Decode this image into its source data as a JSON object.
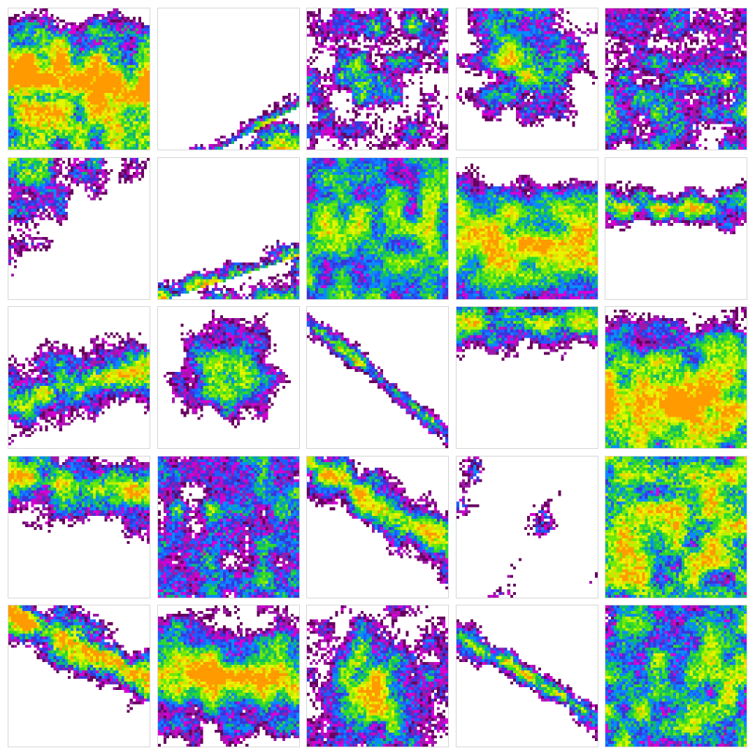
{
  "palette": {
    "empty": "#ffffff",
    "levels": [
      "#66005e",
      "#9c1aa8",
      "#d400d4",
      "#3b34d8",
      "#1f5cff",
      "#0a8aff",
      "#11b86e",
      "#2ed82e",
      "#6fe80a",
      "#b8f000",
      "#e6f500",
      "#f2d000",
      "#ff9a00"
    ]
  },
  "tiles": [
    {
      "id": "r1c1",
      "pattern": "band",
      "angle": 8,
      "offset": 0.05,
      "width": 1.2,
      "coverage": 0.95,
      "hot": 0.75,
      "topFade": 0.18
    },
    {
      "id": "r1c2",
      "pattern": "wedge",
      "angle": -28,
      "offset": 0.42,
      "width": 0.6,
      "coverage": 0.55,
      "hot": 0.55,
      "topFade": 0.0
    },
    {
      "id": "r1c3",
      "pattern": "patchy",
      "angle": 0,
      "offset": -0.1,
      "width": 0.7,
      "coverage": 0.6,
      "hot": 0.45,
      "topFade": 0.0
    },
    {
      "id": "r1c4",
      "pattern": "blob",
      "angle": 0,
      "offset": -0.15,
      "width": 0.9,
      "coverage": 0.8,
      "hot": 0.6,
      "topFade": 0.0
    },
    {
      "id": "r1c5",
      "pattern": "patchy",
      "angle": 5,
      "offset": -0.05,
      "width": 0.8,
      "coverage": 0.7,
      "hot": 0.5,
      "topFade": 0.0
    },
    {
      "id": "r2c1",
      "pattern": "corner",
      "angle": -35,
      "offset": -0.25,
      "width": 0.5,
      "coverage": 0.45,
      "hot": 0.35,
      "topFade": 0.0
    },
    {
      "id": "r2c2",
      "pattern": "wedge",
      "angle": -18,
      "offset": 0.35,
      "width": 0.7,
      "coverage": 0.5,
      "hot": 0.65,
      "topFade": 0.0
    },
    {
      "id": "r2c3",
      "pattern": "full",
      "angle": 0,
      "offset": 0.0,
      "width": 1.0,
      "coverage": 0.95,
      "hot": 0.45,
      "topFade": 0.0
    },
    {
      "id": "r2c4",
      "pattern": "band",
      "angle": 2,
      "offset": 0.1,
      "width": 1.3,
      "coverage": 1.0,
      "hot": 0.5,
      "topFade": 0.35
    },
    {
      "id": "r2c5",
      "pattern": "strip",
      "angle": 0,
      "offset": -0.15,
      "width": 0.22,
      "coverage": 0.6,
      "hot": 0.45,
      "topFade": 0.0
    },
    {
      "id": "r3c1",
      "pattern": "strip",
      "angle": -15,
      "offset": 0.05,
      "width": 0.35,
      "coverage": 0.65,
      "hot": 0.5,
      "topFade": 0.0
    },
    {
      "id": "r3c2",
      "pattern": "blob",
      "angle": 0,
      "offset": -0.05,
      "width": 0.75,
      "coverage": 0.75,
      "hot": 0.45,
      "topFade": 0.0
    },
    {
      "id": "r3c3",
      "pattern": "diag",
      "angle": 38,
      "offset": 0.0,
      "width": 0.1,
      "coverage": 0.45,
      "hot": 0.35,
      "topFade": 0.0
    },
    {
      "id": "r3c4",
      "pattern": "topband",
      "angle": 0,
      "offset": -0.4,
      "width": 0.5,
      "coverage": 0.7,
      "hot": 0.4,
      "topFade": 0.0
    },
    {
      "id": "r3c5",
      "pattern": "band",
      "angle": 0,
      "offset": 0.2,
      "width": 1.4,
      "coverage": 1.0,
      "hot": 0.55,
      "topFade": 0.2
    },
    {
      "id": "r4c1",
      "pattern": "topband",
      "angle": 8,
      "offset": -0.3,
      "width": 0.6,
      "coverage": 0.8,
      "hot": 0.5,
      "topFade": 0.0
    },
    {
      "id": "r4c2",
      "pattern": "patchy",
      "angle": -10,
      "offset": -0.2,
      "width": 0.65,
      "coverage": 0.7,
      "hot": 0.45,
      "topFade": 0.0
    },
    {
      "id": "r4c3",
      "pattern": "diag",
      "angle": 30,
      "offset": -0.15,
      "width": 0.45,
      "coverage": 0.7,
      "hot": 0.5,
      "topFade": 0.0
    },
    {
      "id": "r4c4",
      "pattern": "sparse",
      "angle": 0,
      "offset": 0.0,
      "width": 0.5,
      "coverage": 0.25,
      "hot": 0.35,
      "topFade": 0.0
    },
    {
      "id": "r4c5",
      "pattern": "full",
      "angle": -25,
      "offset": 0.0,
      "width": 1.0,
      "coverage": 0.95,
      "hot": 0.7,
      "topFade": 0.0
    },
    {
      "id": "r5c1",
      "pattern": "diag",
      "angle": 25,
      "offset": -0.2,
      "width": 0.35,
      "coverage": 0.7,
      "hot": 0.75,
      "topFade": 0.0
    },
    {
      "id": "r5c2",
      "pattern": "band",
      "angle": 5,
      "offset": 0.0,
      "width": 0.8,
      "coverage": 0.95,
      "hot": 0.55,
      "topFade": 0.0
    },
    {
      "id": "r5c3",
      "pattern": "blob",
      "angle": 0,
      "offset": 0.1,
      "width": 1.0,
      "coverage": 0.9,
      "hot": 0.65,
      "topFade": 0.0
    },
    {
      "id": "r5c4",
      "pattern": "diag",
      "angle": 30,
      "offset": 0.0,
      "width": 0.18,
      "coverage": 0.55,
      "hot": 0.45,
      "topFade": 0.0
    },
    {
      "id": "r5c5",
      "pattern": "full",
      "angle": -30,
      "offset": 0.1,
      "width": 1.0,
      "coverage": 0.9,
      "hot": 0.55,
      "topFade": 0.0
    }
  ]
}
